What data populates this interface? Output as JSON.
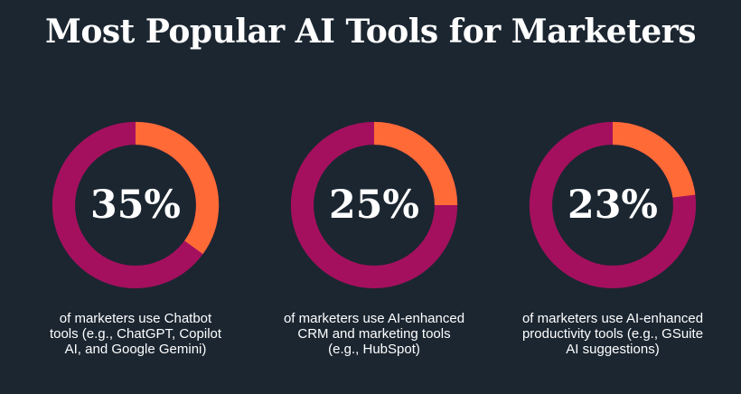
{
  "title": "Most Popular AI Tools for Marketers",
  "colors": {
    "background": "#1b2631",
    "ring": "#a4105e",
    "highlight": "#ff6a37"
  },
  "chart_data": {
    "type": "pie",
    "style": "donut",
    "title": "Most Popular AI Tools for Marketers",
    "items": [
      {
        "value": 35,
        "label": "35%",
        "caption": "of marketers use Chatbot tools (e.g., ChatGPT, Copilot AI, and Google Gemini)"
      },
      {
        "value": 25,
        "label": "25%",
        "caption": "of marketers use AI-enhanced CRM and marketing tools (e.g., HubSpot)"
      },
      {
        "value": 23,
        "label": "23%",
        "caption": "of marketers use AI-enhanced productivity tools (e.g., GSuite AI suggestions)"
      }
    ]
  }
}
